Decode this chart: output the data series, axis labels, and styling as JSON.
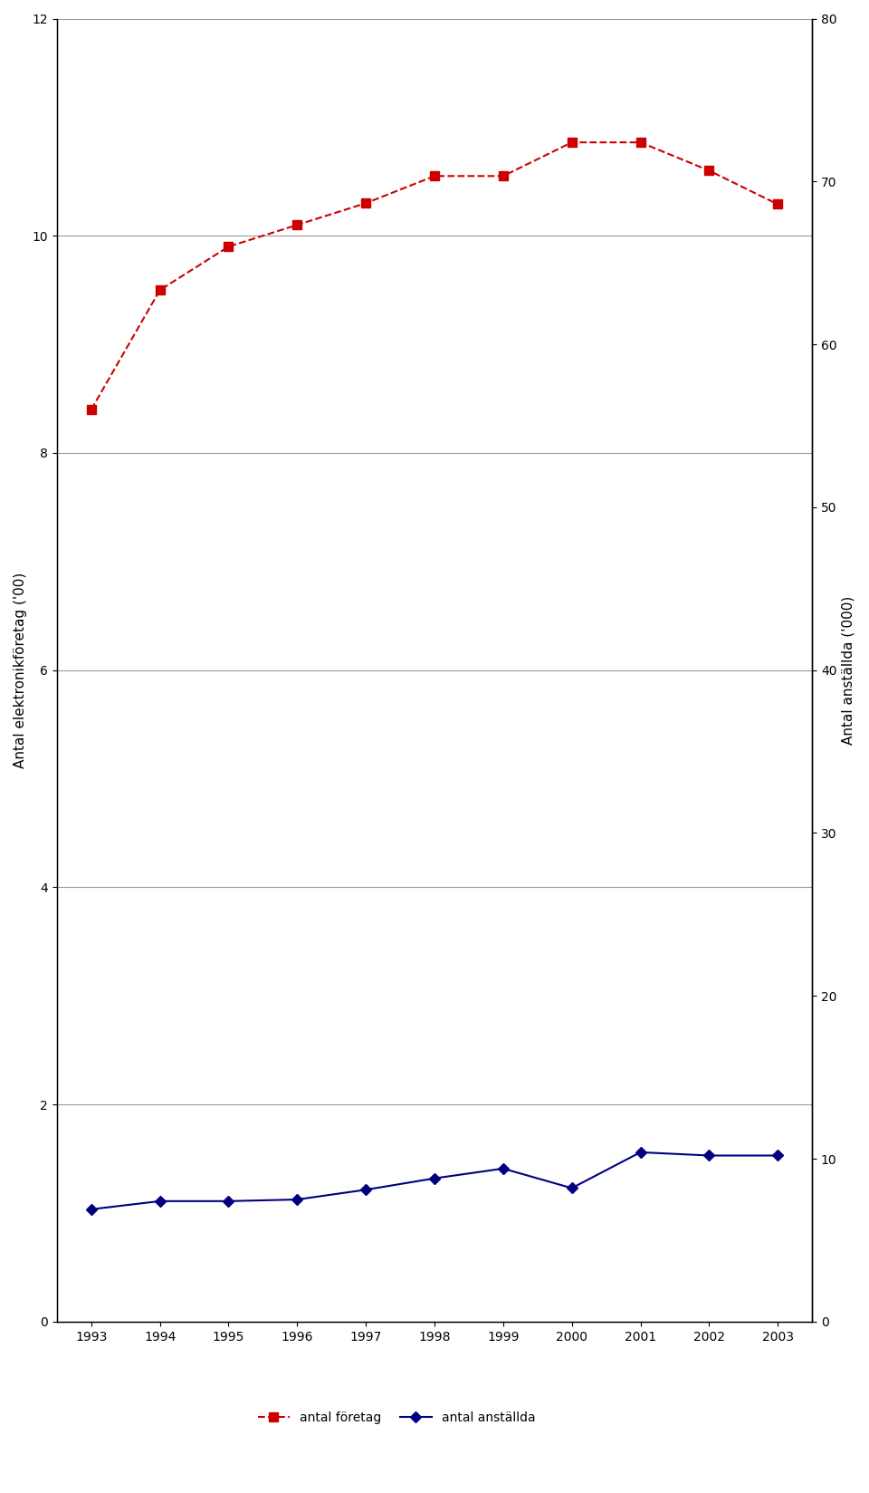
{
  "years": [
    1993,
    1994,
    1995,
    1996,
    1997,
    1998,
    1999,
    2000,
    2001,
    2002,
    2003
  ],
  "foretag": [
    8.4,
    9.5,
    9.9,
    10.1,
    10.3,
    10.55,
    10.55,
    10.86,
    10.86,
    10.6,
    10.29
  ],
  "foretag_marker": "s",
  "foretag_color": "#cc0000",
  "foretag_linestyle": "--",
  "anstallda": [
    6.9,
    7.4,
    7.4,
    7.5,
    8.1,
    8.8,
    9.4,
    8.2,
    10.4,
    10.2,
    10.2
  ],
  "anstallda_marker": "D",
  "anstallda_color": "#000080",
  "anstallda_linestyle": "-",
  "ylabel_left": "Antal elektronikföretag ('00)",
  "ylabel_right": "Antal anställda ('000)",
  "ylim_left": [
    0,
    12
  ],
  "ylim_right": [
    0,
    80
  ],
  "yticks_left": [
    0,
    2,
    4,
    6,
    8,
    10,
    12
  ],
  "yticks_right": [
    0,
    10,
    20,
    30,
    40,
    50,
    60,
    70,
    80
  ],
  "legend_foretag": "antal företag",
  "legend_anstallda": "antal anställda",
  "grid_color": "#999999",
  "bg_color": "#ffffff"
}
